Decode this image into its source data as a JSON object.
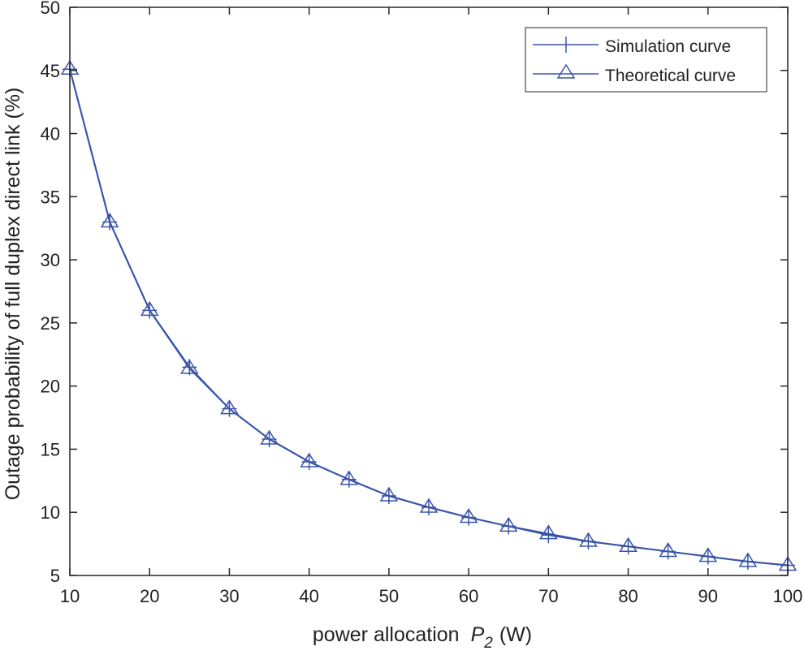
{
  "chart_data": {
    "type": "line",
    "title": "",
    "xlabel": "power allocation",
    "xlabel_symbol": "P",
    "xlabel_subscript": "2",
    "xlabel_unit": "(W)",
    "ylabel": "Outage probability of full duplex direct link (%)",
    "xlim": [
      10,
      100
    ],
    "ylim": [
      5,
      50
    ],
    "xticks": [
      10,
      20,
      30,
      40,
      50,
      60,
      70,
      80,
      90,
      100
    ],
    "yticks": [
      5,
      10,
      15,
      20,
      25,
      30,
      35,
      40,
      45,
      50
    ],
    "grid": false,
    "legend_position": "top-right",
    "x": [
      10,
      15,
      20,
      25,
      30,
      35,
      40,
      45,
      50,
      55,
      60,
      65,
      70,
      75,
      80,
      85,
      90,
      95,
      100
    ],
    "series": [
      {
        "name": "Simulation curve",
        "marker": "plus",
        "color": "#3a55a8",
        "values": [
          45.1,
          33.0,
          26.0,
          21.5,
          18.2,
          15.8,
          14.0,
          12.6,
          11.3,
          10.4,
          9.6,
          8.9,
          8.2,
          7.7,
          7.3,
          6.9,
          6.5,
          6.1,
          5.8
        ]
      },
      {
        "name": "Theoretical curve",
        "marker": "triangle",
        "color": "#3a55a8",
        "values": [
          45.1,
          33.0,
          26.0,
          21.4,
          18.2,
          15.8,
          14.0,
          12.6,
          11.3,
          10.4,
          9.6,
          8.9,
          8.3,
          7.7,
          7.3,
          6.9,
          6.5,
          6.1,
          5.8
        ]
      }
    ]
  }
}
